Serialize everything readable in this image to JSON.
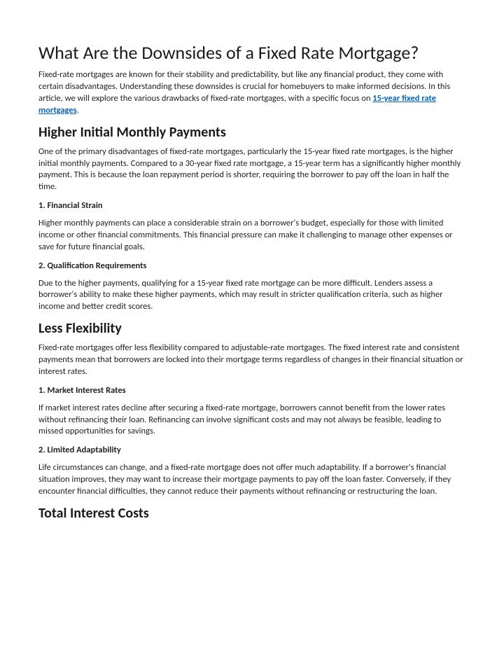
{
  "title": "What Are the Downsides of a Fixed Rate Mortgage?",
  "intro_pre": "Fixed-rate mortgages are known for their stability and predictability, but like any financial product, they come with certain disadvantages. Understanding these downsides is crucial for homebuyers to make informed decisions. In this article, we will explore the various drawbacks of fixed-rate mortgages, with a specific focus on ",
  "intro_link": "15-year fixed rate mortgages",
  "intro_post": ".",
  "link_color": "#0563c1",
  "sections": {
    "s1": {
      "heading": "Higher Initial Monthly Payments",
      "intro": "One of the primary disadvantages of fixed-rate mortgages, particularly the 15-year fixed rate mortgages, is the higher initial monthly payments. Compared to a 30-year fixed rate mortgage, a 15-year term has a significantly higher monthly payment. This is because the loan repayment period is shorter, requiring the borrower to pay off the loan in half the time.",
      "sub1_title": "1. Financial Strain",
      "sub1_body": "Higher monthly payments can place a considerable strain on a borrower's budget, especially for those with limited income or other financial commitments. This financial pressure can make it challenging to manage other expenses or save for future financial goals.",
      "sub2_title": "2. Qualification Requirements",
      "sub2_body": "Due to the higher payments, qualifying for a 15-year fixed rate mortgage can be more difficult. Lenders assess a borrower's ability to make these higher payments, which may result in stricter qualification criteria, such as higher income and better credit scores."
    },
    "s2": {
      "heading": "Less Flexibility",
      "intro": "Fixed-rate mortgages offer less flexibility compared to adjustable-rate mortgages. The fixed interest rate and consistent payments mean that borrowers are locked into their mortgage terms regardless of changes in their financial situation or interest rates.",
      "sub1_title": "1. Market Interest Rates",
      "sub1_body": "If market interest rates decline after securing a fixed-rate mortgage, borrowers cannot benefit from the lower rates without refinancing their loan. Refinancing can involve significant costs and may not always be feasible, leading to missed opportunities for savings.",
      "sub2_title": "2. Limited Adaptability",
      "sub2_body": "Life circumstances can change, and a fixed-rate mortgage does not offer much adaptability. If a borrower's financial situation improves, they may want to increase their mortgage payments to pay off the loan faster. Conversely, if they encounter financial difficulties, they cannot reduce their payments without refinancing or restructuring the loan."
    },
    "s3": {
      "heading": "Total Interest Costs"
    }
  }
}
